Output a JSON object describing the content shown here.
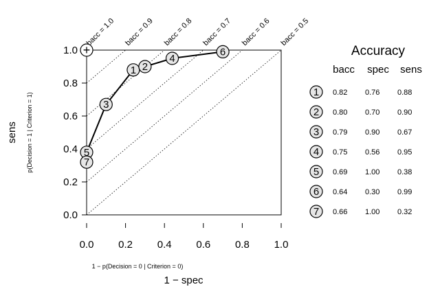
{
  "chart_data": {
    "type": "scatter",
    "xlabel": "1 − spec",
    "xlabel_sub": "1 − p(Decision = 0 | Criterion = 0)",
    "ylabel": "sens",
    "ylabel_sub": "p(Decision = 1 | Criterion = 1)",
    "xlim": [
      0,
      1
    ],
    "ylim": [
      0,
      1
    ],
    "xticks": [
      "0.0",
      "0.2",
      "0.4",
      "0.6",
      "0.8",
      "1.0"
    ],
    "yticks": [
      "0.0",
      "0.2",
      "0.4",
      "0.6",
      "0.8",
      "1.0"
    ],
    "reference_point_label": "+",
    "iso_lines": [
      {
        "bacc": 1.0,
        "label": "bacc = 1.0"
      },
      {
        "bacc": 0.9,
        "label": "bacc = 0.9"
      },
      {
        "bacc": 0.8,
        "label": "bacc = 0.8"
      },
      {
        "bacc": 0.7,
        "label": "bacc = 0.7"
      },
      {
        "bacc": 0.6,
        "label": "bacc = 0.6"
      },
      {
        "bacc": 0.5,
        "label": "bacc = 0.5"
      }
    ],
    "points": [
      {
        "id": "1",
        "bacc": "0.82",
        "spec": "0.76",
        "sens": "0.88",
        "x": 0.24,
        "y": 0.88
      },
      {
        "id": "2",
        "bacc": "0.80",
        "spec": "0.70",
        "sens": "0.90",
        "x": 0.3,
        "y": 0.9
      },
      {
        "id": "3",
        "bacc": "0.79",
        "spec": "0.90",
        "sens": "0.67",
        "x": 0.1,
        "y": 0.67
      },
      {
        "id": "4",
        "bacc": "0.75",
        "spec": "0.56",
        "sens": "0.95",
        "x": 0.44,
        "y": 0.95
      },
      {
        "id": "5",
        "bacc": "0.69",
        "spec": "1.00",
        "sens": "0.38",
        "x": 0.0,
        "y": 0.38
      },
      {
        "id": "6",
        "bacc": "0.64",
        "spec": "0.30",
        "sens": "0.99",
        "x": 0.7,
        "y": 0.99
      },
      {
        "id": "7",
        "bacc": "0.66",
        "spec": "1.00",
        "sens": "0.32",
        "x": 0.0,
        "y": 0.32
      }
    ],
    "frontier_order": [
      "7",
      "5",
      "3",
      "1",
      "2",
      "4",
      "6"
    ],
    "table": {
      "title": "Accuracy",
      "columns": [
        "bacc",
        "spec",
        "sens"
      ]
    },
    "colors": {
      "marker_fill": "#e6e6e6",
      "reference_fill": "#ffffff",
      "line": "#000000"
    }
  }
}
